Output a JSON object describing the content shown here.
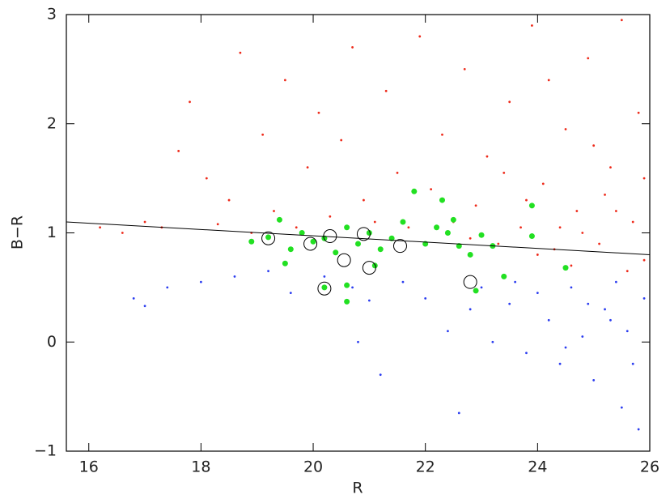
{
  "chart_data": {
    "type": "scatter",
    "xlabel": "R",
    "ylabel": "B−R",
    "xlim": [
      15.6,
      26
    ],
    "ylim": [
      -1,
      3
    ],
    "xticks": [
      16,
      18,
      20,
      22,
      24,
      26
    ],
    "yticks": [
      {
        "value": -1,
        "label": "−1"
      },
      0,
      1,
      2,
      3
    ],
    "series": [
      {
        "color": "#ee2a1a",
        "marker": "dot",
        "x": [
          16.2,
          16.6,
          17.0,
          17.3,
          17.6,
          17.8,
          18.1,
          18.3,
          18.5,
          18.7,
          18.9,
          19.1,
          19.3,
          19.5,
          19.7,
          19.9,
          20.1,
          20.3,
          20.5,
          20.7,
          20.9,
          21.1,
          21.3,
          21.5,
          21.7,
          21.9,
          22.1,
          22.3,
          22.5,
          22.7,
          22.9,
          23.1,
          23.3,
          23.5,
          23.7,
          23.9,
          24.1,
          24.3,
          24.5,
          24.7,
          24.9,
          25.1,
          25.3,
          25.5,
          25.7,
          25.9,
          24.0,
          24.6,
          25.2,
          25.8,
          23.8,
          22.8,
          24.8,
          25.6,
          25.0,
          24.2,
          23.4,
          25.4,
          25.9,
          24.4
        ],
        "values": [
          1.05,
          1.0,
          1.1,
          1.05,
          1.75,
          2.2,
          1.5,
          1.08,
          1.3,
          2.65,
          1.0,
          1.9,
          1.2,
          2.4,
          1.05,
          1.6,
          2.1,
          1.15,
          1.85,
          2.7,
          1.3,
          1.1,
          2.3,
          1.55,
          1.05,
          2.8,
          1.4,
          1.9,
          1.1,
          2.5,
          1.25,
          1.7,
          0.9,
          2.2,
          1.05,
          2.9,
          1.45,
          0.85,
          1.95,
          1.2,
          2.6,
          0.9,
          1.6,
          2.95,
          1.1,
          0.75,
          0.8,
          0.7,
          1.35,
          2.1,
          1.3,
          0.95,
          1.0,
          0.65,
          1.8,
          2.4,
          1.55,
          1.2,
          1.5,
          1.05
        ]
      },
      {
        "color": "#2b3df0",
        "marker": "dot",
        "x": [
          16.8,
          17.0,
          17.4,
          18.0,
          18.6,
          19.2,
          19.6,
          20.2,
          20.7,
          21.0,
          21.2,
          21.6,
          22.0,
          22.4,
          22.6,
          22.8,
          23.0,
          23.2,
          23.5,
          23.8,
          24.0,
          24.2,
          24.4,
          24.6,
          24.8,
          25.0,
          25.2,
          25.4,
          25.5,
          25.6,
          25.8,
          25.9,
          25.7,
          25.3,
          24.9,
          24.5,
          23.6,
          20.8
        ],
        "values": [
          0.4,
          0.33,
          0.5,
          0.55,
          0.6,
          0.65,
          0.45,
          0.6,
          0.5,
          0.38,
          -0.3,
          0.55,
          0.4,
          0.1,
          -0.65,
          0.3,
          0.5,
          0.0,
          0.35,
          -0.1,
          0.45,
          0.2,
          -0.2,
          0.5,
          0.05,
          -0.35,
          0.3,
          0.55,
          -0.6,
          0.1,
          -0.8,
          0.4,
          -0.2,
          0.2,
          0.35,
          -0.05,
          0.55,
          0.0
        ]
      },
      {
        "color": "#22e022",
        "marker": "big-dot",
        "x": [
          18.9,
          19.2,
          19.4,
          19.6,
          19.8,
          20.0,
          20.2,
          20.4,
          20.6,
          20.8,
          21.0,
          21.2,
          21.4,
          21.6,
          21.8,
          22.0,
          22.2,
          22.4,
          22.5,
          22.6,
          22.8,
          23.0,
          23.2,
          23.4,
          23.9,
          23.9,
          24.5,
          20.6,
          20.6,
          20.2,
          19.5,
          22.3,
          21.1,
          22.9
        ],
        "values": [
          0.92,
          0.96,
          1.12,
          0.85,
          1.0,
          0.92,
          0.95,
          0.82,
          1.05,
          0.9,
          1.0,
          0.85,
          0.95,
          1.1,
          1.38,
          0.9,
          1.05,
          1.0,
          1.12,
          0.88,
          0.8,
          0.98,
          0.88,
          0.6,
          1.25,
          0.97,
          0.68,
          0.52,
          0.37,
          0.5,
          0.72,
          1.3,
          0.7,
          0.47
        ]
      },
      {
        "color": "#000000",
        "marker": "open-circle",
        "x": [
          19.2,
          19.95,
          20.3,
          20.55,
          20.9,
          21.0,
          21.55,
          20.2,
          22.8
        ],
        "values": [
          0.95,
          0.9,
          0.97,
          0.75,
          0.99,
          0.68,
          0.88,
          0.49,
          0.55
        ]
      }
    ],
    "lines": [
      {
        "color": "#000000",
        "x": [
          15.6,
          26
        ],
        "values": [
          1.1,
          0.8
        ]
      }
    ]
  }
}
